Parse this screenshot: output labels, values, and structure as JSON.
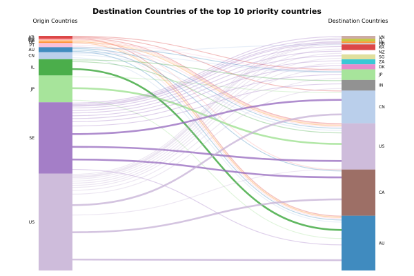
{
  "chart_data": {
    "type": "sankey",
    "title": "Destination Countries of the top 10 priority countries",
    "left_label": "Origin Countries",
    "right_label": "Destination Countries",
    "origins": [
      {
        "name": "KR",
        "value": 4,
        "color": "#d62728"
      },
      {
        "name": "MX",
        "value": 2,
        "color": "#ff9896"
      },
      {
        "name": "CH",
        "value": 2,
        "color": "#ffbb78"
      },
      {
        "name": "DE",
        "value": 2,
        "color": "#ff7f0e"
      },
      {
        "name": "PT",
        "value": 6,
        "color": "#f7b6d2"
      },
      {
        "name": "AU",
        "value": 7,
        "color": "#1f77b4"
      },
      {
        "name": "CN",
        "value": 10,
        "color": "#aec7e8"
      },
      {
        "name": "IL",
        "value": 23,
        "color": "#2ca02c"
      },
      {
        "name": "JP",
        "value": 38,
        "color": "#98df8a"
      },
      {
        "name": "SE",
        "value": 101,
        "color": "#9467bd"
      },
      {
        "name": "US",
        "value": 137,
        "color": "#c5b0d5"
      }
    ],
    "destinations": [
      {
        "name": "VN",
        "value": 4,
        "color": "#c49c94"
      },
      {
        "name": "IT",
        "value": 4,
        "color": "#bcbd22"
      },
      {
        "name": "DE",
        "value": 2,
        "color": "#ff7f0e"
      },
      {
        "name": "GB",
        "value": 2,
        "color": "#c7c7c7"
      },
      {
        "name": "KR",
        "value": 8,
        "color": "#d62728"
      },
      {
        "name": "NZ",
        "value": 6,
        "color": "#ffffff"
      },
      {
        "name": "SG",
        "value": 7,
        "color": "#dbdb8d"
      },
      {
        "name": "ZA",
        "value": 7,
        "color": "#17becf"
      },
      {
        "name": "DK",
        "value": 7,
        "color": "#e377c2"
      },
      {
        "name": "JP",
        "value": 15,
        "color": "#98df8a"
      },
      {
        "name": "IN",
        "value": 15,
        "color": "#7f7f7f"
      },
      {
        "name": "CN",
        "value": 46,
        "color": "#aec7e8"
      },
      {
        "name": "US",
        "value": 65,
        "color": "#c5b0d5"
      },
      {
        "name": "CA",
        "value": 65,
        "color": "#8c564b"
      },
      {
        "name": "AU",
        "value": 77,
        "color": "#1f77b4"
      }
    ],
    "flows": [
      {
        "from": "KR",
        "to": "JP",
        "value": 1
      },
      {
        "from": "KR",
        "to": "CN",
        "value": 1
      },
      {
        "from": "KR",
        "to": "US",
        "value": 1
      },
      {
        "from": "KR",
        "to": "AU",
        "value": 1
      },
      {
        "from": "MX",
        "to": "US",
        "value": 1
      },
      {
        "from": "MX",
        "to": "CA",
        "value": 1
      },
      {
        "from": "CH",
        "to": "US",
        "value": 1
      },
      {
        "from": "CH",
        "to": "AU",
        "value": 1
      },
      {
        "from": "DE",
        "to": "US",
        "value": 1
      },
      {
        "from": "DE",
        "to": "AU",
        "value": 1
      },
      {
        "from": "PT",
        "to": "JP",
        "value": 2
      },
      {
        "from": "PT",
        "to": "US",
        "value": 2
      },
      {
        "from": "PT",
        "to": "AU",
        "value": 2
      },
      {
        "from": "AU",
        "to": "JP",
        "value": 1
      },
      {
        "from": "AU",
        "to": "US",
        "value": 2
      },
      {
        "from": "AU",
        "to": "CA",
        "value": 2
      },
      {
        "from": "AU",
        "to": "AU",
        "value": 2
      },
      {
        "from": "CN",
        "to": "KR",
        "value": 1
      },
      {
        "from": "CN",
        "to": "JP",
        "value": 1
      },
      {
        "from": "CN",
        "to": "US",
        "value": 4
      },
      {
        "from": "CN",
        "to": "AU",
        "value": 4
      },
      {
        "from": "IL",
        "to": "IN",
        "value": 2
      },
      {
        "from": "IL",
        "to": "US",
        "value": 3
      },
      {
        "from": "IL",
        "to": "AU",
        "value": 18
      },
      {
        "from": "JP",
        "to": "CN",
        "value": 4
      },
      {
        "from": "JP",
        "to": "US",
        "value": 28
      },
      {
        "from": "JP",
        "to": "AU",
        "value": 6
      },
      {
        "from": "SE",
        "to": "VN",
        "value": 2
      },
      {
        "from": "SE",
        "to": "IT",
        "value": 2
      },
      {
        "from": "SE",
        "to": "DE",
        "value": 1
      },
      {
        "from": "SE",
        "to": "GB",
        "value": 1
      },
      {
        "from": "SE",
        "to": "KR",
        "value": 4
      },
      {
        "from": "SE",
        "to": "NZ",
        "value": 3
      },
      {
        "from": "SE",
        "to": "SG",
        "value": 4
      },
      {
        "from": "SE",
        "to": "ZA",
        "value": 4
      },
      {
        "from": "SE",
        "to": "DK",
        "value": 4
      },
      {
        "from": "SE",
        "to": "JP",
        "value": 5
      },
      {
        "from": "SE",
        "to": "IN",
        "value": 7
      },
      {
        "from": "SE",
        "to": "CN",
        "value": 16
      },
      {
        "from": "SE",
        "to": "US",
        "value": 20
      },
      {
        "from": "SE",
        "to": "CA",
        "value": 16
      },
      {
        "from": "SE",
        "to": "AU",
        "value": 12
      },
      {
        "from": "US",
        "to": "VN",
        "value": 2
      },
      {
        "from": "US",
        "to": "IT",
        "value": 2
      },
      {
        "from": "US",
        "to": "DE",
        "value": 1
      },
      {
        "from": "US",
        "to": "GB",
        "value": 1
      },
      {
        "from": "US",
        "to": "KR",
        "value": 3
      },
      {
        "from": "US",
        "to": "NZ",
        "value": 3
      },
      {
        "from": "US",
        "to": "SG",
        "value": 3
      },
      {
        "from": "US",
        "to": "ZA",
        "value": 3
      },
      {
        "from": "US",
        "to": "DK",
        "value": 3
      },
      {
        "from": "US",
        "to": "JP",
        "value": 5
      },
      {
        "from": "US",
        "to": "IN",
        "value": 6
      },
      {
        "from": "US",
        "to": "CN",
        "value": 25
      },
      {
        "from": "US",
        "to": "US",
        "value": 3
      },
      {
        "from": "US",
        "to": "CA",
        "value": 46
      },
      {
        "from": "US",
        "to": "AU",
        "value": 31
      }
    ]
  }
}
